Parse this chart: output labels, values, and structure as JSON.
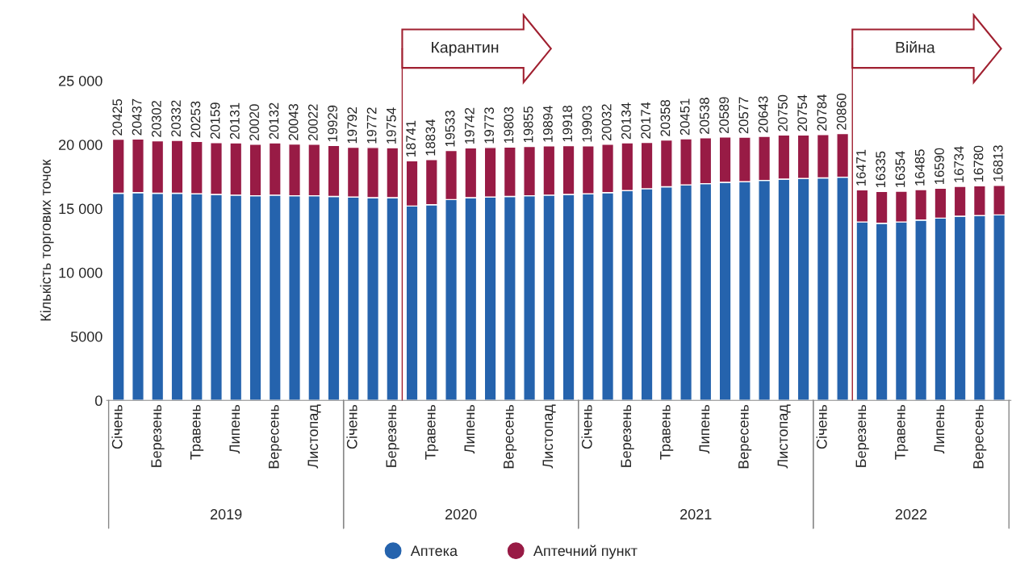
{
  "chart_data": {
    "type": "bar",
    "stacked": true,
    "ylabel": "Кількість торгових точок",
    "categories": [
      "Січень",
      null,
      "Березень",
      null,
      "Травень",
      null,
      "Липень",
      null,
      "Вересень",
      null,
      "Листопад",
      null,
      "Січень",
      null,
      "Березень",
      null,
      "Травень",
      null,
      "Липень",
      null,
      "Вересень",
      null,
      "Листопад",
      null,
      "Січень",
      null,
      "Березень",
      null,
      "Травень",
      null,
      "Липень",
      null,
      "Вересень",
      null,
      "Листопад",
      null,
      "Січень",
      null,
      "Березень",
      null,
      "Травень",
      null,
      "Липень",
      null,
      "Вересень",
      null
    ],
    "series": [
      {
        "name": "Аптека",
        "color": "#2563ad",
        "values": [
          16200,
          16250,
          16200,
          16200,
          16150,
          16100,
          16050,
          16000,
          16050,
          16000,
          16000,
          15950,
          15900,
          15850,
          15850,
          15200,
          15300,
          15700,
          15850,
          15900,
          15950,
          16000,
          16050,
          16100,
          16150,
          16250,
          16400,
          16550,
          16700,
          16850,
          16950,
          17050,
          17100,
          17200,
          17300,
          17350,
          17400,
          17450,
          13950,
          13850,
          13950,
          14100,
          14250,
          14400,
          14450,
          14500
        ]
      },
      {
        "name": "Аптечний пункт",
        "color": "#981b45",
        "values": [
          4225,
          4187,
          4102,
          4132,
          4103,
          4059,
          4081,
          4020,
          4082,
          4043,
          4022,
          3979,
          3892,
          3922,
          3904,
          3541,
          3534,
          3833,
          3892,
          3873,
          3853,
          3855,
          3844,
          3818,
          3753,
          3782,
          3734,
          3624,
          3658,
          3601,
          3588,
          3539,
          3477,
          3443,
          3450,
          3404,
          3384,
          3410,
          2521,
          2485,
          2404,
          2385,
          2340,
          2334,
          2330,
          2313
        ]
      }
    ],
    "totals": [
      "20425",
      "20437",
      "20302",
      "20332",
      "20253",
      "20159",
      "20131",
      "20020",
      "20132",
      "20043",
      "20022",
      "19929",
      "19792",
      "19772",
      "19754",
      "18741",
      "18834",
      "19533",
      "19742",
      "19773",
      "19803",
      "19855",
      "19894",
      "19918",
      "19903",
      "20032",
      "20134",
      "20174",
      "20358",
      "20451",
      "20538",
      "20589",
      "20577",
      "20643",
      "20750",
      "20754",
      "20784",
      "20860",
      "16471",
      "16335",
      "16354",
      "16485",
      "16590",
      "16734",
      "16780",
      "16813"
    ],
    "ylim": [
      0,
      25000
    ],
    "yticks": [
      0,
      {
        "value": 5000,
        "label": "5000"
      },
      {
        "value": 10000,
        "label": "10 000"
      },
      {
        "value": 15000,
        "label": "15 000"
      },
      {
        "value": 20000,
        "label": "20 000"
      },
      {
        "value": 25000,
        "label": "25 000"
      }
    ],
    "annotations": [
      "2019",
      "2020",
      "2021",
      "2022",
      "Карантин",
      "Війна"
    ],
    "grid": false,
    "legend": "bottom"
  }
}
